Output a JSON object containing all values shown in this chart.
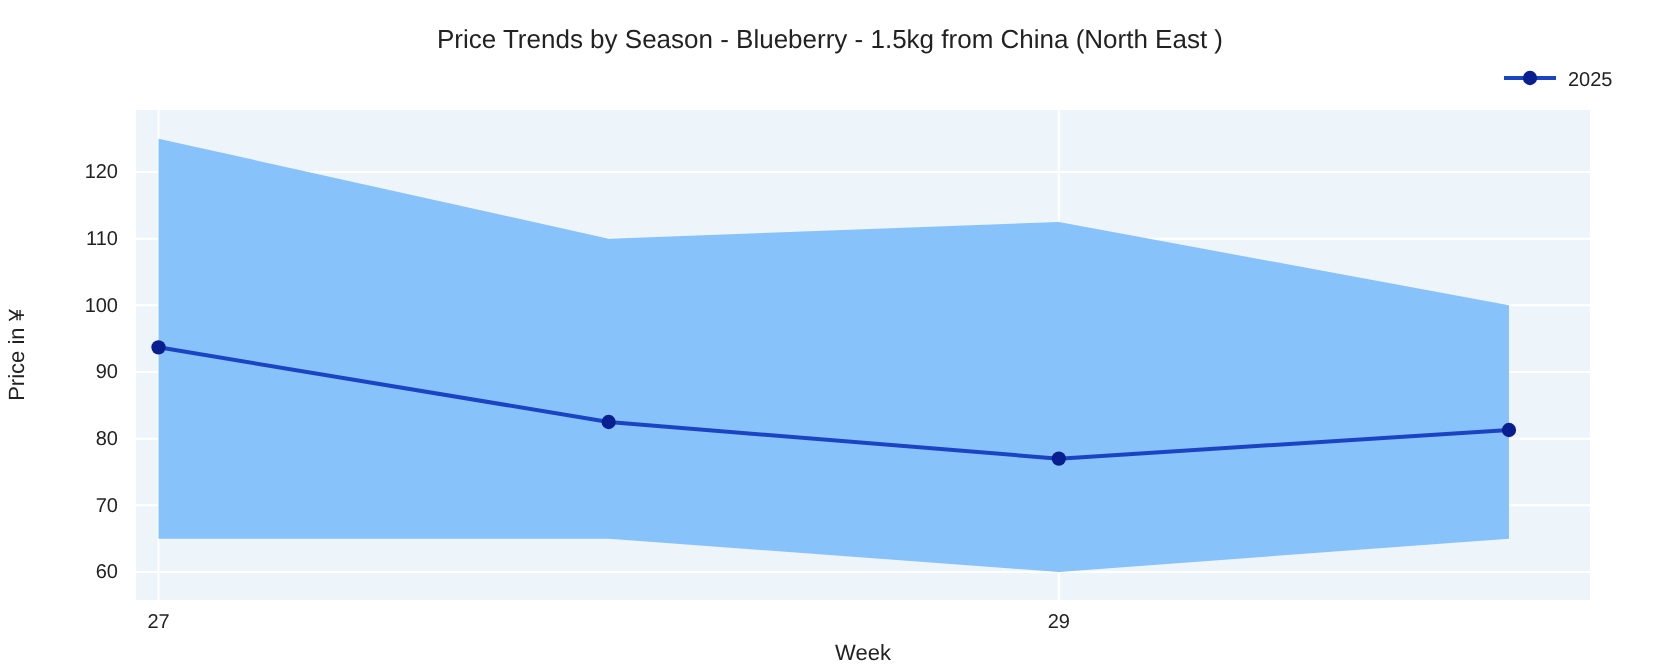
{
  "chart_data": {
    "type": "line",
    "title": "Price Trends by Season - Blueberry - 1.5kg from China (North East )",
    "xlabel": "Week",
    "ylabel": "Price in ¥",
    "x": [
      27,
      28,
      29,
      30
    ],
    "series": [
      {
        "name": "2025",
        "color": "#1a44c4",
        "values": [
          93.7,
          82.5,
          77,
          81.3
        ],
        "lower": [
          65,
          65,
          60,
          65
        ],
        "upper": [
          125,
          110,
          112.5,
          100
        ]
      }
    ],
    "xlim": [
      26.95,
      30.18
    ],
    "xticks": [
      27,
      29
    ],
    "ylim": [
      55.8,
      129.3
    ],
    "yticks": [
      60,
      70,
      80,
      90,
      100,
      110,
      120
    ],
    "grid": true,
    "legend": "top right",
    "marker": "circle",
    "line_style": "solid"
  }
}
